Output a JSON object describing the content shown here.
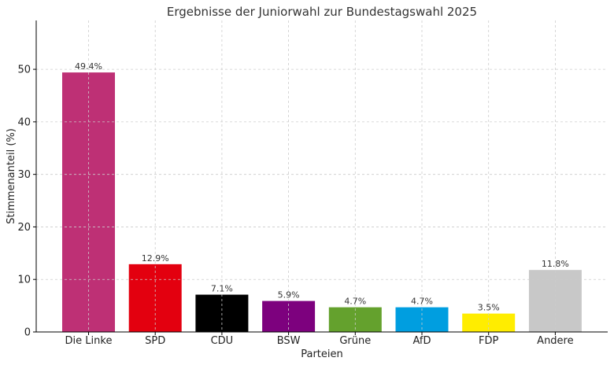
{
  "chart_data": {
    "type": "bar",
    "title": "Ergebnisse der Juniorwahl zur Bundestagswahl 2025",
    "xlabel": "Parteien",
    "ylabel": "Stimmenanteil (%)",
    "categories": [
      "Die Linke",
      "SPD",
      "CDU",
      "BSW",
      "Grüne",
      "AfD",
      "FDP",
      "Andere"
    ],
    "values": [
      49.4,
      12.9,
      7.1,
      5.9,
      4.7,
      4.7,
      3.5,
      11.8
    ],
    "value_labels": [
      "49.4%",
      "12.9%",
      "7.1%",
      "5.9%",
      "4.7%",
      "4.7%",
      "3.5%",
      "11.8%"
    ],
    "colors": [
      "#BE3075",
      "#E3000F",
      "#000000",
      "#7D017E",
      "#64A12D",
      "#009EE0",
      "#FFED00",
      "#C8C8C8"
    ],
    "ylim": [
      0,
      59.3
    ],
    "yticks": [
      0,
      10,
      20,
      30,
      40,
      50
    ],
    "grid": true
  }
}
